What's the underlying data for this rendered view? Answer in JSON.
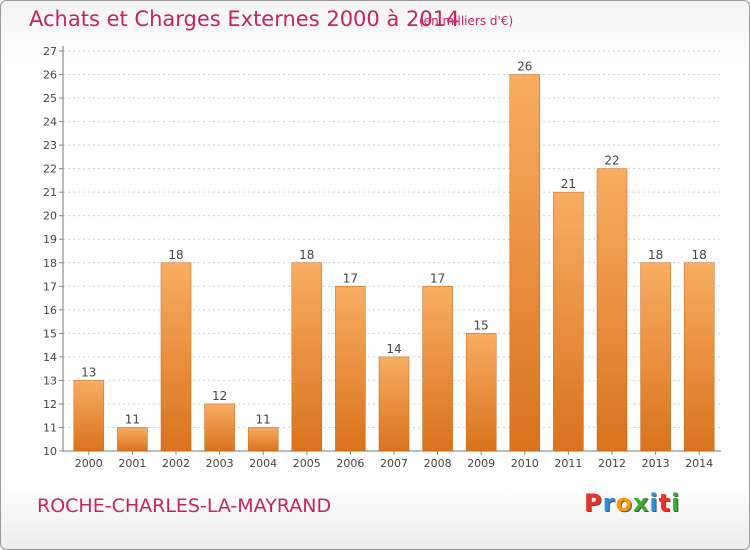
{
  "title": "Achats et Charges Externes 2000 à 2014",
  "subtitle": "(en milliers d'€)",
  "commune": "ROCHE-CHARLES-LA-MAYRAND",
  "logo": {
    "text": "Proxiti",
    "colors": [
      "#e8332a",
      "#2e8ed8",
      "#f39c12",
      "#3aaa35",
      "#2e8ed8",
      "#e8332a",
      "#3aaa35"
    ]
  },
  "colors": {
    "accent": "#c9245a",
    "bar_top": "#f8ad62",
    "bar_bottom": "#d9731c",
    "grid": "#d0d0d0"
  },
  "chart_data": {
    "type": "bar",
    "title": "Achats et Charges Externes 2000 à 2014",
    "subtitle": "(en milliers d'€)",
    "categories": [
      "2000",
      "2001",
      "2002",
      "2003",
      "2004",
      "2005",
      "2006",
      "2007",
      "2008",
      "2009",
      "2010",
      "2011",
      "2012",
      "2013",
      "2014"
    ],
    "values": [
      13,
      11,
      18,
      12,
      11,
      18,
      17,
      14,
      17,
      15,
      26,
      21,
      22,
      18,
      18
    ],
    "ylim": [
      10,
      27
    ],
    "yticks": [
      10,
      11,
      12,
      13,
      14,
      15,
      16,
      17,
      18,
      19,
      20,
      21,
      22,
      23,
      24,
      25,
      26,
      27
    ],
    "grid": true,
    "xlabel": "",
    "ylabel": ""
  }
}
